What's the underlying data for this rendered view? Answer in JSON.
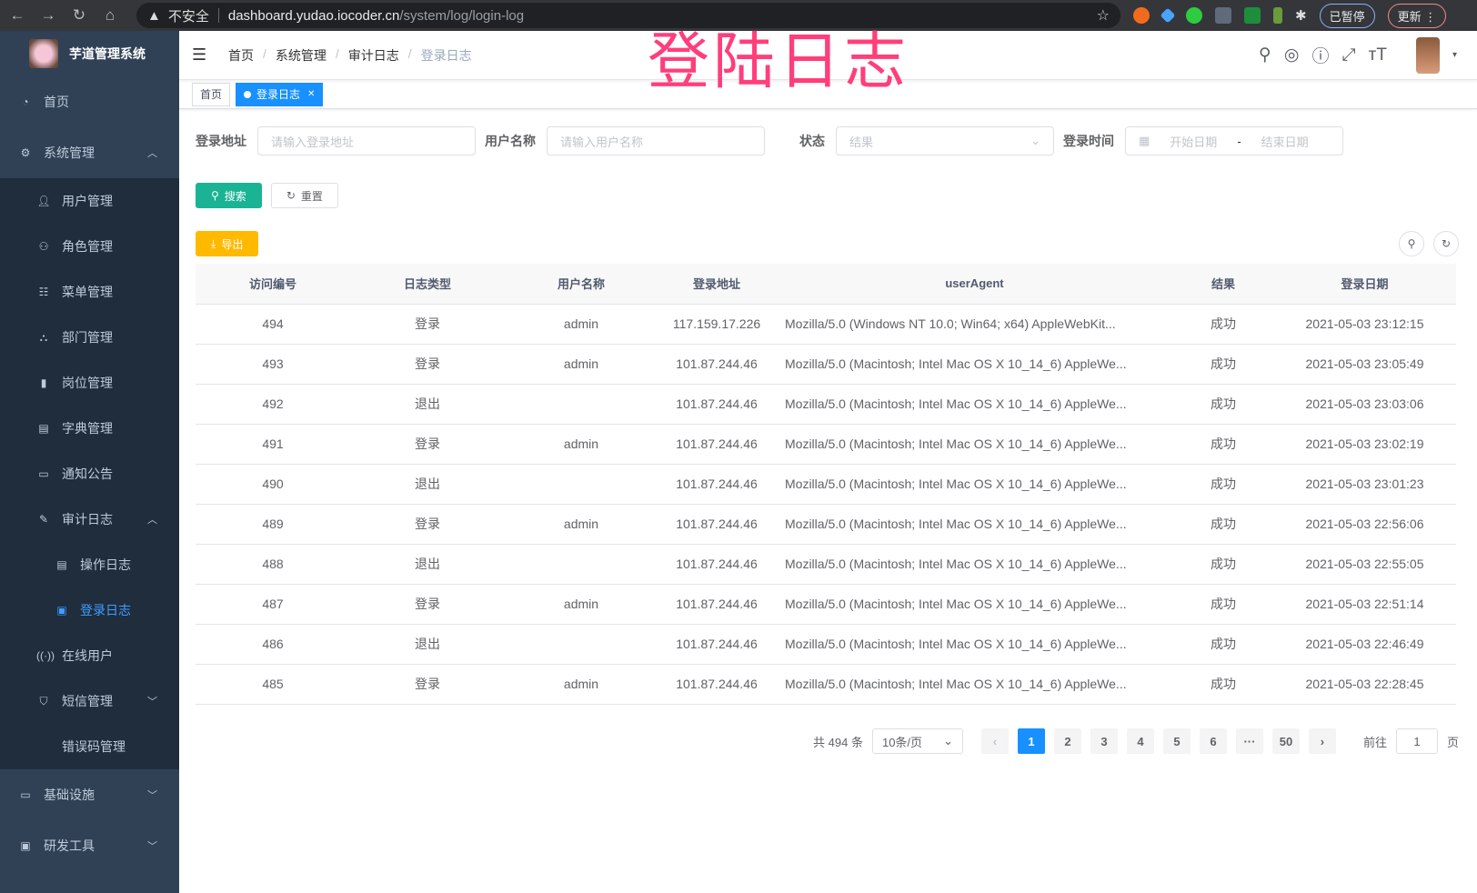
{
  "browser": {
    "warning": "不安全",
    "host": "dashboard.yudao.iocoder.cn",
    "path": "/system/log/login-log",
    "profile": "已暂停",
    "update": "更新"
  },
  "overlay_title": "登陆日志",
  "sidebar": {
    "title": "芋道管理系统",
    "items": [
      {
        "label": "首页",
        "icon": "dashboard-icon",
        "level": 1
      },
      {
        "label": "系统管理",
        "icon": "gear-icon",
        "level": 1,
        "arrow": "up"
      },
      {
        "label": "用户管理",
        "icon": "user-icon",
        "level": 2
      },
      {
        "label": "角色管理",
        "icon": "peoples-icon",
        "level": 2
      },
      {
        "label": "菜单管理",
        "icon": "tree-table-icon",
        "level": 2
      },
      {
        "label": "部门管理",
        "icon": "tree-icon",
        "level": 2
      },
      {
        "label": "岗位管理",
        "icon": "post-icon",
        "level": 2
      },
      {
        "label": "字典管理",
        "icon": "dict-icon",
        "level": 2
      },
      {
        "label": "通知公告",
        "icon": "message-icon",
        "level": 2
      },
      {
        "label": "审计日志",
        "icon": "log-icon",
        "level": 2,
        "arrow": "up"
      },
      {
        "label": "操作日志",
        "icon": "form-icon",
        "level": 3
      },
      {
        "label": "登录日志",
        "icon": "logininfor-icon",
        "level": 3,
        "active": true
      },
      {
        "label": "在线用户",
        "icon": "online-icon",
        "level": 2
      },
      {
        "label": "短信管理",
        "icon": "shield-icon",
        "level": 2,
        "arrow": "down"
      },
      {
        "label": "错误码管理",
        "icon": "code-icon",
        "level": 2
      },
      {
        "label": "基础设施",
        "icon": "monitor-icon",
        "level": 1,
        "arrow": "down"
      },
      {
        "label": "研发工具",
        "icon": "tool-icon",
        "level": 1,
        "arrow": "down"
      }
    ]
  },
  "breadcrumb": [
    "首页",
    "系统管理",
    "审计日志",
    "登录日志"
  ],
  "tags": [
    {
      "label": "首页"
    },
    {
      "label": "登录日志",
      "active": true
    }
  ],
  "filters": {
    "address": {
      "label": "登录地址",
      "placeholder": "请输入登录地址"
    },
    "username": {
      "label": "用户名称",
      "placeholder": "请输入用户名称"
    },
    "status": {
      "label": "状态",
      "placeholder": "结果"
    },
    "time": {
      "label": "登录时间",
      "start": "开始日期",
      "sep": "-",
      "end": "结束日期"
    }
  },
  "buttons": {
    "search": "搜索",
    "reset": "重置",
    "export": "导出"
  },
  "table": {
    "columns": [
      "访问编号",
      "日志类型",
      "用户名称",
      "登录地址",
      "userAgent",
      "结果",
      "登录日期"
    ],
    "rows": [
      [
        "494",
        "登录",
        "admin",
        "117.159.17.226",
        "Mozilla/5.0 (Windows NT 10.0; Win64; x64) AppleWebKit...",
        "成功",
        "2021-05-03 23:12:15"
      ],
      [
        "493",
        "登录",
        "admin",
        "101.87.244.46",
        "Mozilla/5.0 (Macintosh; Intel Mac OS X 10_14_6) AppleWe...",
        "成功",
        "2021-05-03 23:05:49"
      ],
      [
        "492",
        "退出",
        "",
        "101.87.244.46",
        "Mozilla/5.0 (Macintosh; Intel Mac OS X 10_14_6) AppleWe...",
        "成功",
        "2021-05-03 23:03:06"
      ],
      [
        "491",
        "登录",
        "admin",
        "101.87.244.46",
        "Mozilla/5.0 (Macintosh; Intel Mac OS X 10_14_6) AppleWe...",
        "成功",
        "2021-05-03 23:02:19"
      ],
      [
        "490",
        "退出",
        "",
        "101.87.244.46",
        "Mozilla/5.0 (Macintosh; Intel Mac OS X 10_14_6) AppleWe...",
        "成功",
        "2021-05-03 23:01:23"
      ],
      [
        "489",
        "登录",
        "admin",
        "101.87.244.46",
        "Mozilla/5.0 (Macintosh; Intel Mac OS X 10_14_6) AppleWe...",
        "成功",
        "2021-05-03 22:56:06"
      ],
      [
        "488",
        "退出",
        "",
        "101.87.244.46",
        "Mozilla/5.0 (Macintosh; Intel Mac OS X 10_14_6) AppleWe...",
        "成功",
        "2021-05-03 22:55:05"
      ],
      [
        "487",
        "登录",
        "admin",
        "101.87.244.46",
        "Mozilla/5.0 (Macintosh; Intel Mac OS X 10_14_6) AppleWe...",
        "成功",
        "2021-05-03 22:51:14"
      ],
      [
        "486",
        "退出",
        "",
        "101.87.244.46",
        "Mozilla/5.0 (Macintosh; Intel Mac OS X 10_14_6) AppleWe...",
        "成功",
        "2021-05-03 22:46:49"
      ],
      [
        "485",
        "登录",
        "admin",
        "101.87.244.46",
        "Mozilla/5.0 (Macintosh; Intel Mac OS X 10_14_6) AppleWe...",
        "成功",
        "2021-05-03 22:28:45"
      ]
    ]
  },
  "pagination": {
    "total": "共 494 条",
    "page_size": "10条/页",
    "pages": [
      "1",
      "2",
      "3",
      "4",
      "5",
      "6",
      "···",
      "50"
    ],
    "current": "1",
    "goto_label": "前往",
    "goto_value": "1",
    "goto_suffix": "页"
  },
  "colors": {
    "sidebar": "#304156",
    "submenu": "#1f2d3d",
    "accent": "#1890ff",
    "search": "#1ab394",
    "export": "#ffba00"
  }
}
